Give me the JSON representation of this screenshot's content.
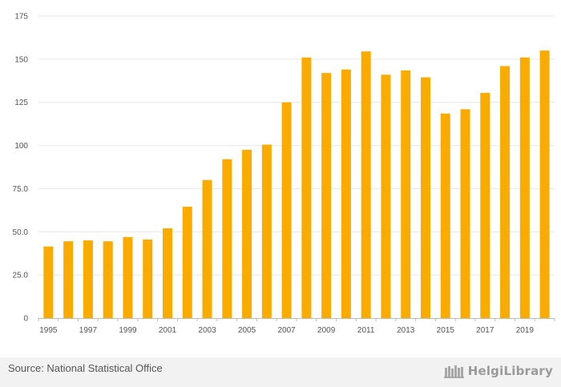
{
  "chart_data": {
    "type": "bar",
    "title": "",
    "xlabel": "",
    "ylabel": "",
    "ylim": [
      0,
      175
    ],
    "yticks": [
      "0",
      "25.0",
      "50.0",
      "75.0",
      "100",
      "125",
      "150",
      "175"
    ],
    "ytick_values": [
      0,
      25,
      50,
      75,
      100,
      125,
      150,
      175
    ],
    "categories": [
      "1995",
      "1996",
      "1997",
      "1998",
      "1999",
      "2000",
      "2001",
      "2002",
      "2003",
      "2004",
      "2005",
      "2006",
      "2007",
      "2008",
      "2009",
      "2010",
      "2011",
      "2012",
      "2013",
      "2014",
      "2015",
      "2016",
      "2017",
      "2018",
      "2019",
      "2020"
    ],
    "xtick_labels": [
      "1995",
      "1997",
      "1999",
      "2001",
      "2003",
      "2005",
      "2007",
      "2009",
      "2011",
      "2013",
      "2015",
      "2017",
      "2019"
    ],
    "values": [
      41.5,
      44.5,
      45,
      44.5,
      47,
      45.5,
      52,
      64.5,
      80,
      92,
      97.5,
      100.5,
      125,
      151,
      142,
      144,
      154.5,
      141,
      143.5,
      139.5,
      118.5,
      121,
      130.5,
      146,
      151,
      155
    ],
    "bar_color": "#FAAB00",
    "grid": true
  },
  "footer": {
    "source": "Source: National Statistical Office",
    "brand": "HelgiLibrary",
    "brand_icon": "bookshelf-icon"
  }
}
